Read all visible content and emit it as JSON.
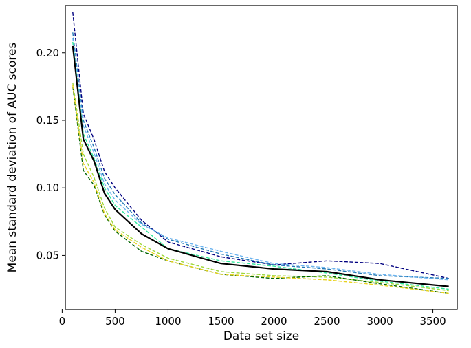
{
  "chart_data": {
    "type": "line",
    "title": "",
    "xlabel": "Data set size",
    "ylabel": "Mean standard deviation of AUC scores",
    "xlim": [
      30,
      3730
    ],
    "ylim": [
      0.01,
      0.235
    ],
    "xticks": [
      0,
      500,
      1000,
      1500,
      2000,
      2500,
      3000,
      3500
    ],
    "xtick_labels": [
      "0",
      "500",
      "1000",
      "1500",
      "2000",
      "2500",
      "3000",
      "3500"
    ],
    "yticks": [
      0.05,
      0.1,
      0.15,
      0.2
    ],
    "ytick_labels": [
      "0.05",
      "0.10",
      "0.15",
      "0.20"
    ],
    "grid": false,
    "legend": "none",
    "x": [
      100,
      200,
      300,
      400,
      500,
      750,
      1000,
      1500,
      2000,
      2500,
      3000,
      3650
    ],
    "series": [
      {
        "color": "#000080",
        "style": "dashed",
        "values": [
          0.23,
          0.155,
          0.136,
          0.112,
          0.1,
          0.076,
          0.06,
          0.049,
          0.043,
          0.046,
          0.044,
          0.033
        ]
      },
      {
        "color": "#1f77b4",
        "style": "dashed",
        "values": [
          0.215,
          0.15,
          0.13,
          0.107,
          0.095,
          0.074,
          0.062,
          0.051,
          0.043,
          0.04,
          0.035,
          0.033
        ]
      },
      {
        "color": "#6cb4f0",
        "style": "dashed",
        "values": [
          0.211,
          0.146,
          0.126,
          0.103,
          0.091,
          0.073,
          0.063,
          0.053,
          0.044,
          0.041,
          0.036,
          0.032
        ]
      },
      {
        "color": "#2ee89a",
        "style": "dashed",
        "values": [
          0.208,
          0.14,
          0.122,
          0.1,
          0.087,
          0.071,
          0.055,
          0.046,
          0.042,
          0.037,
          0.031,
          0.025
        ]
      },
      {
        "color": "#000000",
        "style": "solid",
        "values": [
          0.205,
          0.136,
          0.12,
          0.096,
          0.084,
          0.066,
          0.055,
          0.044,
          0.04,
          0.038,
          0.032,
          0.027
        ]
      },
      {
        "color": "#9dd83a",
        "style": "dashed",
        "values": [
          0.178,
          0.125,
          0.108,
          0.085,
          0.071,
          0.058,
          0.048,
          0.038,
          0.035,
          0.034,
          0.03,
          0.024
        ]
      },
      {
        "color": "#006400",
        "style": "dashed",
        "values": [
          0.175,
          0.113,
          0.102,
          0.08,
          0.068,
          0.053,
          0.046,
          0.036,
          0.033,
          0.035,
          0.029,
          0.022
        ]
      },
      {
        "color": "#e8d21d",
        "style": "dashed",
        "values": [
          0.176,
          0.118,
          0.104,
          0.081,
          0.069,
          0.056,
          0.046,
          0.036,
          0.034,
          0.032,
          0.028,
          0.022
        ]
      }
    ]
  }
}
